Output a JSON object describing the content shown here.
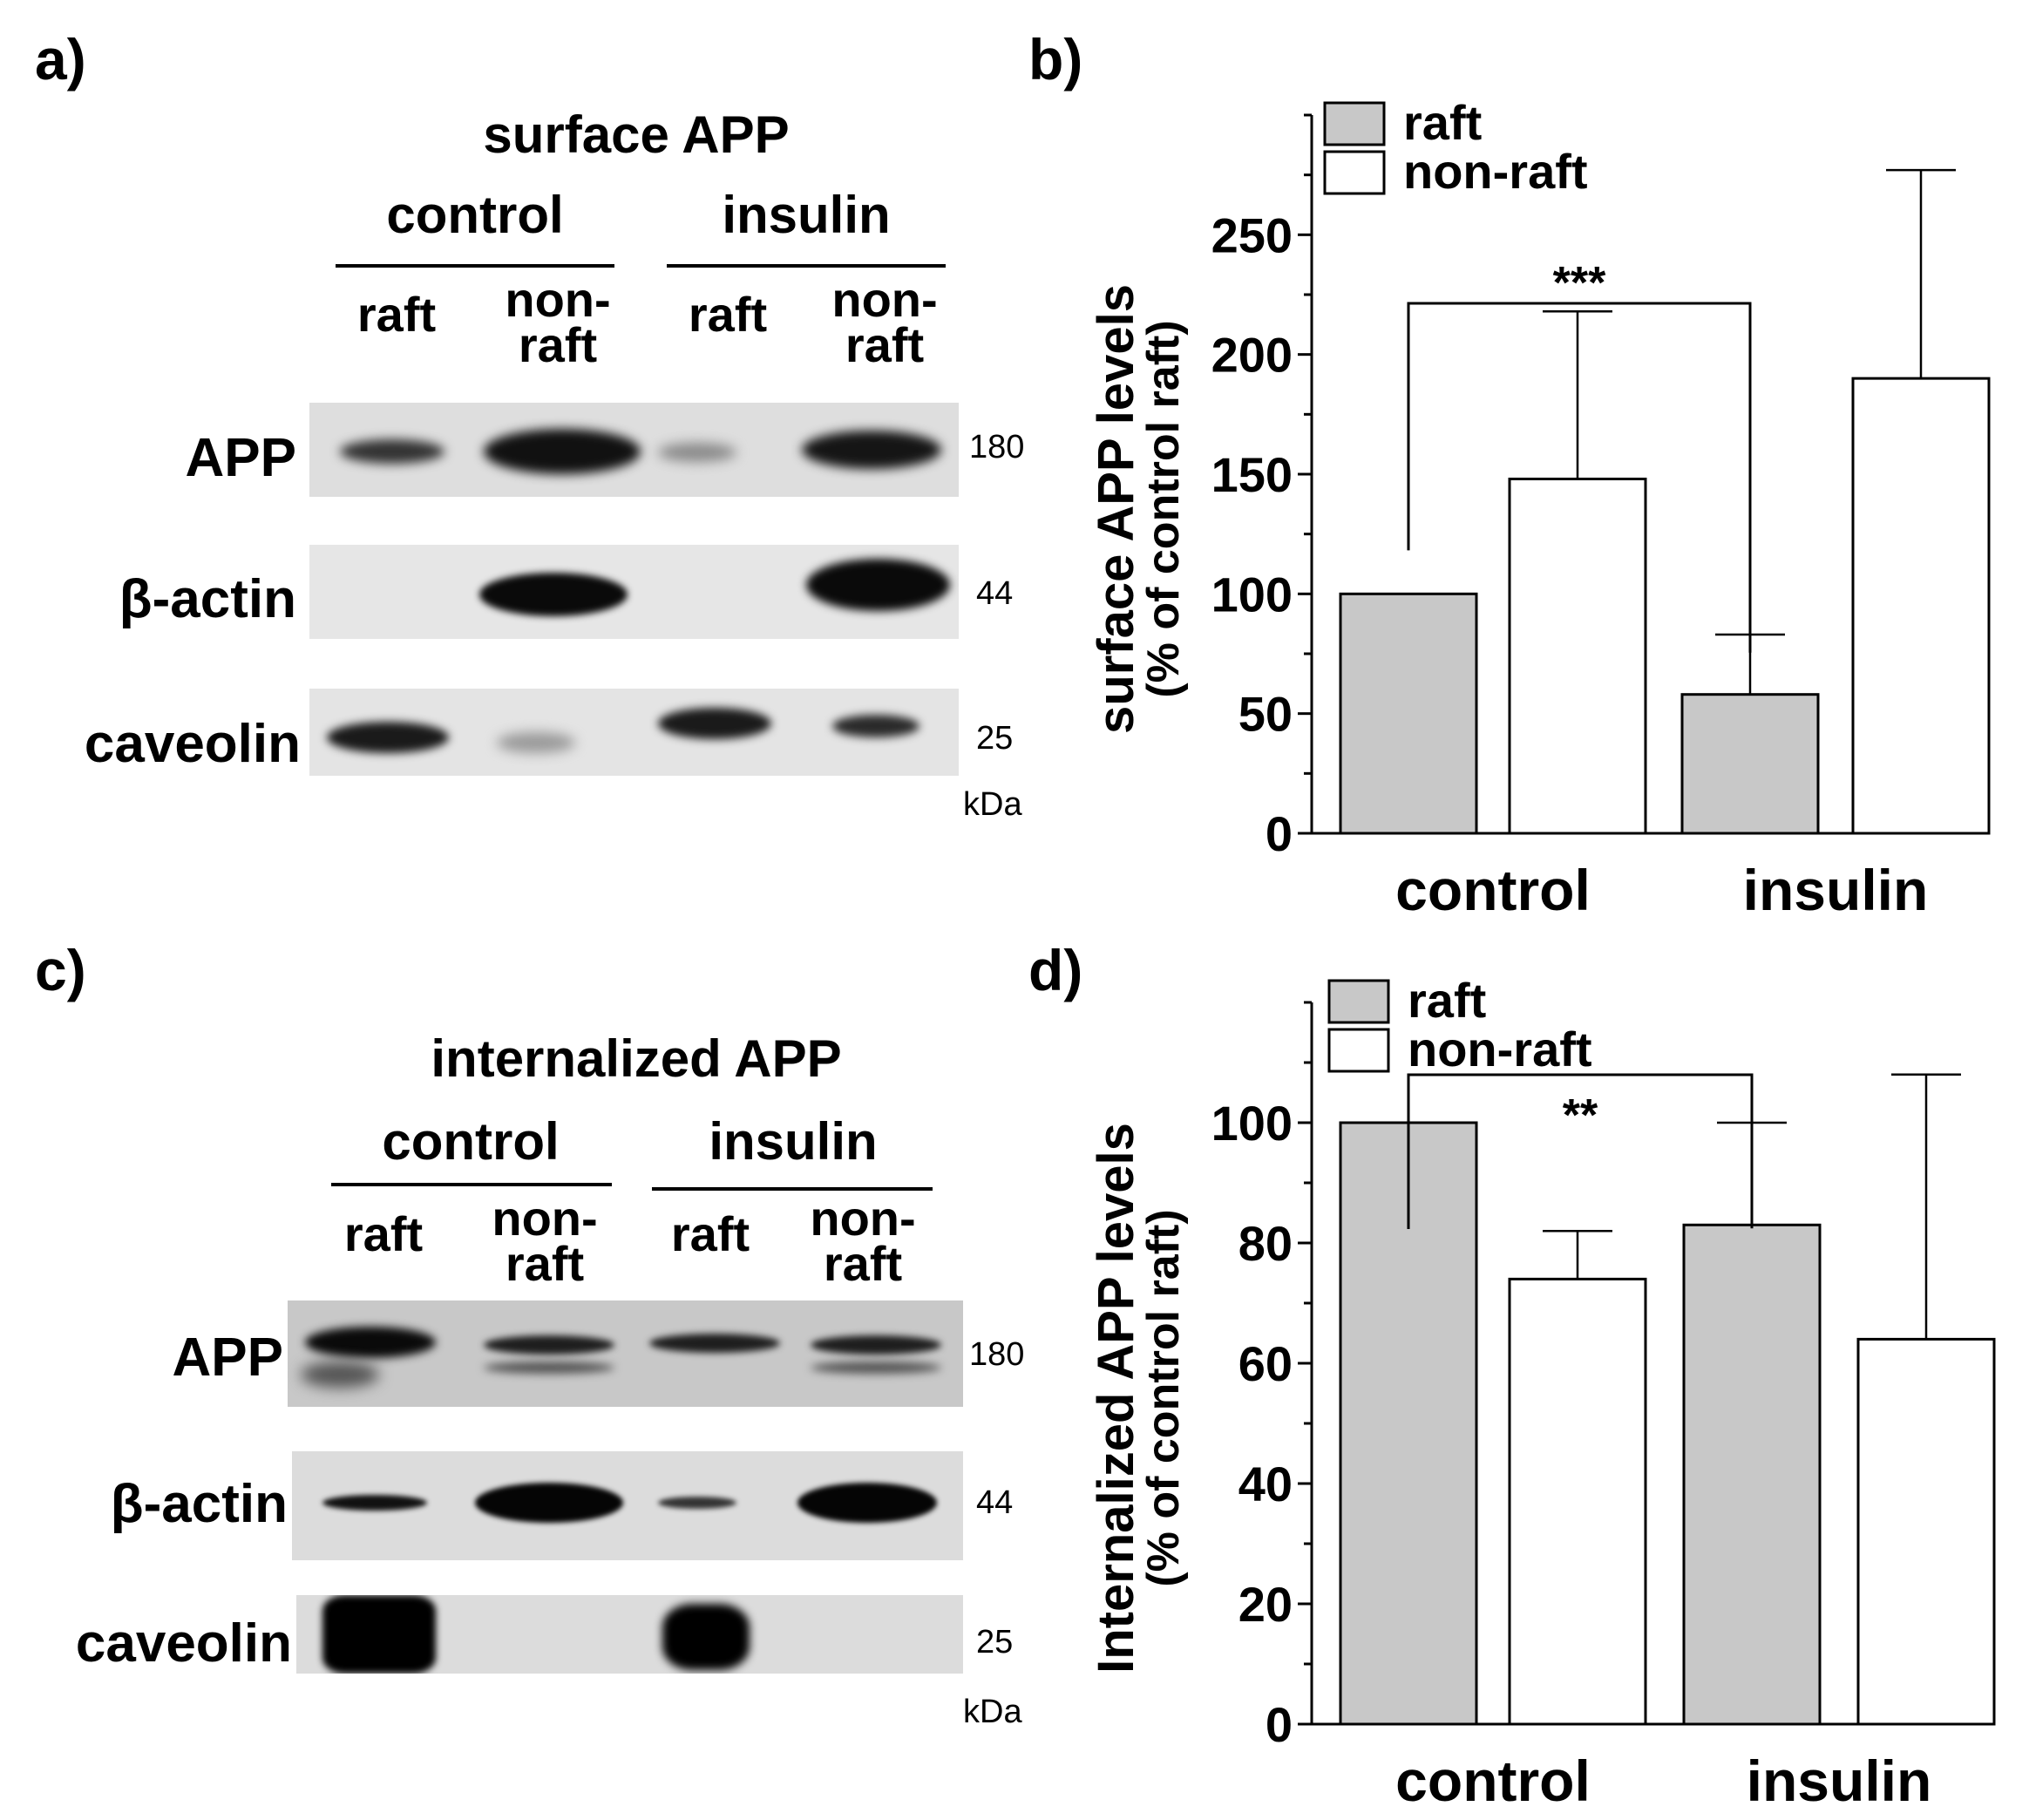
{
  "panels": {
    "a": {
      "letter": "a)",
      "title": "surface APP",
      "groups": [
        "control",
        "insulin"
      ],
      "lanes": [
        {
          "line1": "raft",
          "line2": ""
        },
        {
          "line1": "non-",
          "line2": "raft"
        },
        {
          "line1": "raft",
          "line2": ""
        },
        {
          "line1": "non-",
          "line2": "raft"
        }
      ],
      "rows": [
        "APP",
        "β-actin",
        "caveolin"
      ],
      "kda_values": [
        "180",
        "44",
        "25"
      ],
      "kda_unit": "kDa"
    },
    "c": {
      "letter": "c)",
      "title": "internalized APP",
      "groups": [
        "control",
        "insulin"
      ],
      "lanes": [
        {
          "line1": "raft",
          "line2": ""
        },
        {
          "line1": "non-",
          "line2": "raft"
        },
        {
          "line1": "raft",
          "line2": ""
        },
        {
          "line1": "non-",
          "line2": "raft"
        }
      ],
      "rows": [
        "APP",
        "β-actin",
        "caveolin"
      ],
      "kda_values": [
        "180",
        "44",
        "25"
      ],
      "kda_unit": "kDa"
    },
    "b_letter": "b)",
    "d_letter": "d)"
  },
  "chart_data": [
    {
      "type": "bar",
      "panel": "b",
      "categories": [
        "control",
        "insulin"
      ],
      "series": [
        {
          "name": "raft",
          "values": [
            100,
            58
          ],
          "errors": [
            0,
            25
          ],
          "color": "#c8c8c8"
        },
        {
          "name": "non-raft",
          "values": [
            148,
            190
          ],
          "errors": [
            70,
            87
          ],
          "color": "#ffffff"
        }
      ],
      "ylabel_line1": "surface APP levels",
      "ylabel_line2": "(% of control raft)",
      "ylim": [
        0,
        300
      ],
      "yticks": [
        0,
        50,
        100,
        150,
        200,
        250
      ],
      "legend": "top-left",
      "significance": {
        "from": "control raft",
        "to": "insulin raft",
        "label": "***"
      }
    },
    {
      "type": "bar",
      "panel": "d",
      "categories": [
        "control",
        "insulin"
      ],
      "series": [
        {
          "name": "raft",
          "values": [
            100,
            83
          ],
          "errors": [
            0,
            17
          ],
          "color": "#c8c8c8"
        },
        {
          "name": "non-raft",
          "values": [
            74,
            64
          ],
          "errors": [
            8,
            44
          ],
          "color": "#ffffff"
        }
      ],
      "ylabel_line1": "Internalized APP levels",
      "ylabel_line2": "(% of control raft)",
      "ylim": [
        0,
        120
      ],
      "yticks": [
        0,
        20,
        40,
        60,
        80,
        100
      ],
      "legend": "top-left",
      "significance": {
        "from": "control raft",
        "to": "insulin raft",
        "label": "**"
      }
    }
  ]
}
